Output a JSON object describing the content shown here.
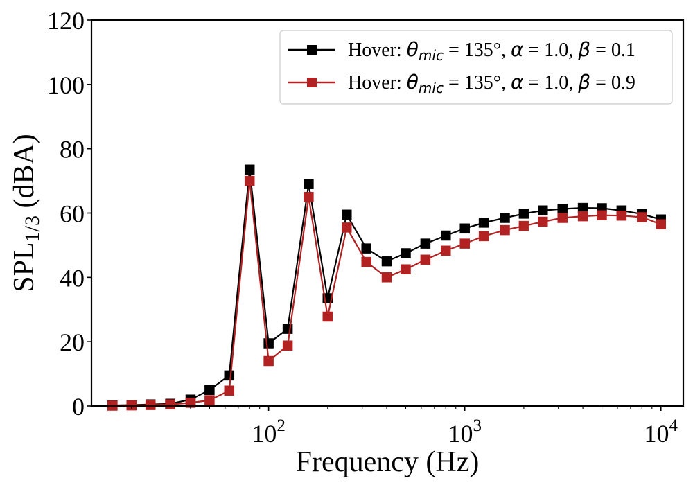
{
  "chart_data": {
    "type": "line",
    "title": "",
    "xlabel": "Frequency (Hz)",
    "ylabel": {
      "main": "SPL",
      "sub": "1/3",
      "unit": " (dBA)"
    },
    "xscale": "log",
    "xlim": [
      12.5,
      13000
    ],
    "ylim": [
      0,
      120
    ],
    "yticks": [
      "0",
      "20",
      "40",
      "60",
      "80",
      "100",
      "120"
    ],
    "xticks": [
      {
        "value": 100,
        "base": "10",
        "exp": "2"
      },
      {
        "value": 1000,
        "base": "10",
        "exp": "3"
      },
      {
        "value": 10000,
        "base": "10",
        "exp": "4"
      }
    ],
    "grid": false,
    "legend_position": "top-right",
    "x": [
      16,
      20,
      25,
      31.5,
      40,
      50,
      63,
      80,
      100,
      125,
      160,
      200,
      250,
      315,
      400,
      500,
      630,
      800,
      1000,
      1250,
      1600,
      2000,
      2500,
      3150,
      4000,
      5000,
      6300,
      8000,
      10000
    ],
    "series": [
      {
        "legend": {
          "prefix": "Hover: ",
          "theta_sym": "θ",
          "theta_sub": "mic",
          "theta_val": " = 135°, ",
          "alpha_sym": "α",
          "alpha_val": " = 1.0, ",
          "beta_sym": "β",
          "beta_val": " = 0.1"
        },
        "color": "#000000",
        "values": [
          0.2,
          0.3,
          0.5,
          0.7,
          2.0,
          5.0,
          9.5,
          73.5,
          19.5,
          24.0,
          69.0,
          33.5,
          59.5,
          49.0,
          45.0,
          47.5,
          50.5,
          53.0,
          55.2,
          57.0,
          58.5,
          59.8,
          60.8,
          61.3,
          61.6,
          61.5,
          60.8,
          59.7,
          58.0
        ]
      },
      {
        "legend": {
          "prefix": "Hover: ",
          "theta_sym": "θ",
          "theta_sub": "mic",
          "theta_val": " = 135°, ",
          "alpha_sym": "α",
          "alpha_val": " = 1.0, ",
          "beta_sym": "β",
          "beta_val": " = 0.9"
        },
        "color": "#b22222",
        "values": [
          0.1,
          0.2,
          0.3,
          0.5,
          1.0,
          1.8,
          4.8,
          70.0,
          14.0,
          18.8,
          65.0,
          27.8,
          55.5,
          44.8,
          40.0,
          42.5,
          45.5,
          48.3,
          50.5,
          52.8,
          54.7,
          56.0,
          57.3,
          58.5,
          59.0,
          59.3,
          59.2,
          58.7,
          56.5
        ]
      }
    ]
  }
}
